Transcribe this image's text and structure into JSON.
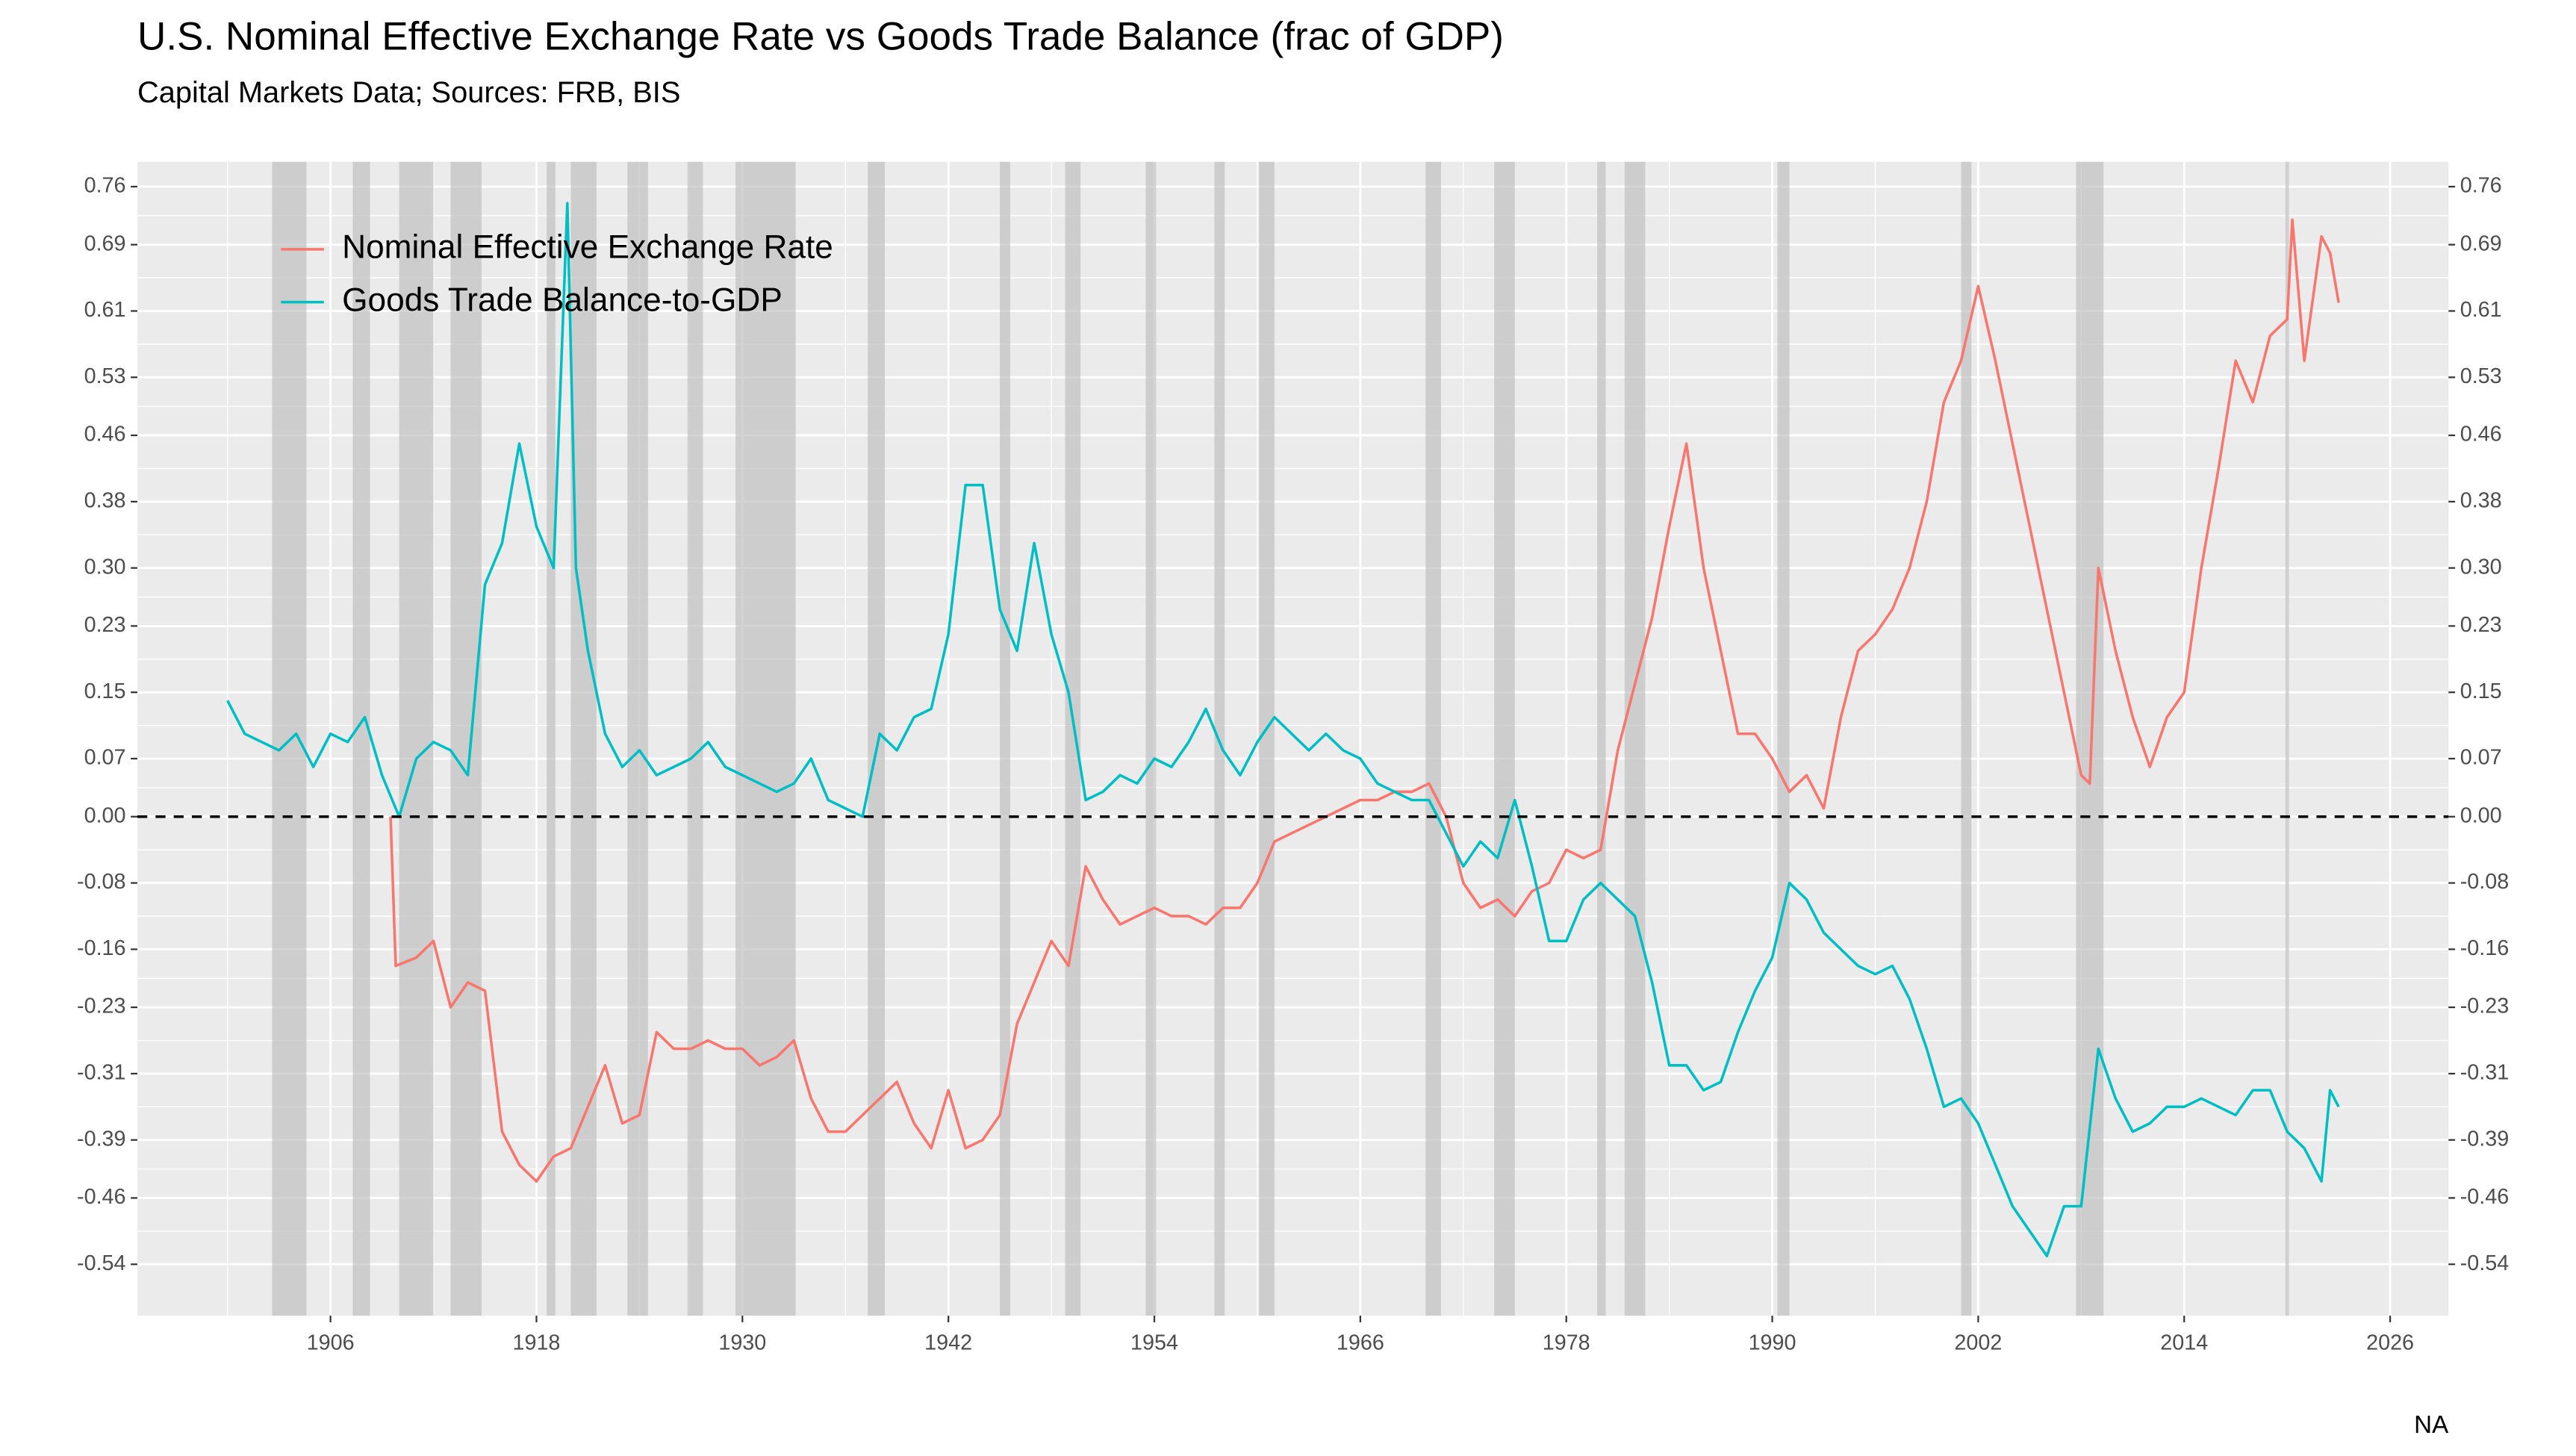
{
  "chart_data": {
    "type": "line",
    "title": "U.S. Nominal Effective Exchange Rate vs Goods Trade Balance (frac of GDP)",
    "subtitle": "Capital Markets Data; Sources: FRB, BIS",
    "caption": "NA",
    "xlim": [
      1894.75,
      2029.4
    ],
    "xticks": [
      1906,
      1918,
      1930,
      1942,
      1954,
      1966,
      1978,
      1990,
      2002,
      2014,
      2026
    ],
    "ylim": [
      -0.602,
      0.79
    ],
    "yticks": [
      {
        "value": 0.76,
        "label": "0.76"
      },
      {
        "value": 0.69,
        "label": "0.69"
      },
      {
        "value": 0.61,
        "label": "0.61"
      },
      {
        "value": 0.53,
        "label": "0.53"
      },
      {
        "value": 0.46,
        "label": "0.46"
      },
      {
        "value": 0.38,
        "label": "0.38"
      },
      {
        "value": 0.3,
        "label": "0.30"
      },
      {
        "value": 0.23,
        "label": "0.23"
      },
      {
        "value": 0.15,
        "label": "0.15"
      },
      {
        "value": 0.07,
        "label": "0.07"
      },
      {
        "value": 0,
        "label": "0.00"
      },
      {
        "value": -0.08,
        "label": "-0.08"
      },
      {
        "value": -0.16,
        "label": "-0.16"
      },
      {
        "value": -0.23,
        "label": "-0.23"
      },
      {
        "value": -0.31,
        "label": "-0.31"
      },
      {
        "value": -0.39,
        "label": "-0.39"
      },
      {
        "value": -0.46,
        "label": "-0.46"
      },
      {
        "value": -0.54,
        "label": "-0.54"
      }
    ],
    "y2lim": [
      -0.602,
      0.79
    ],
    "y2ticks": [
      {
        "value": 0.76,
        "label": "0.76"
      },
      {
        "value": 0.69,
        "label": "0.69"
      },
      {
        "value": 0.61,
        "label": "0.61"
      },
      {
        "value": 0.53,
        "label": "0.53"
      },
      {
        "value": 0.46,
        "label": "0.46"
      },
      {
        "value": 0.38,
        "label": "0.38"
      },
      {
        "value": 0.3,
        "label": "0.30"
      },
      {
        "value": 0.23,
        "label": "0.23"
      },
      {
        "value": 0.15,
        "label": "0.15"
      },
      {
        "value": 0.07,
        "label": "0.07"
      },
      {
        "value": 0,
        "label": "0.00"
      },
      {
        "value": -0.08,
        "label": "-0.08"
      },
      {
        "value": -0.16,
        "label": "-0.16"
      },
      {
        "value": -0.23,
        "label": "-0.23"
      },
      {
        "value": -0.31,
        "label": "-0.31"
      },
      {
        "value": -0.39,
        "label": "-0.39"
      },
      {
        "value": -0.46,
        "label": "-0.46"
      },
      {
        "value": -0.54,
        "label": "-0.54"
      }
    ],
    "grid": true,
    "legend": "top-left",
    "hline": 0,
    "recessions": [
      [
        1902.6,
        1904.6
      ],
      [
        1907.3,
        1908.3
      ],
      [
        1910,
        1912
      ],
      [
        1913,
        1914.8
      ],
      [
        1918.6,
        1919.1
      ],
      [
        1920,
        1921.5
      ],
      [
        1923.3,
        1924.5
      ],
      [
        1926.8,
        1927.7
      ],
      [
        1929.6,
        1933.1
      ],
      [
        1937.3,
        1938.3
      ],
      [
        1945,
        1945.6
      ],
      [
        1948.8,
        1949.7
      ],
      [
        1953.5,
        1954.1
      ],
      [
        1957.5,
        1958.1
      ],
      [
        1960.1,
        1961
      ],
      [
        1969.8,
        1970.7
      ],
      [
        1973.8,
        1975
      ],
      [
        1979.8,
        1980.3
      ],
      [
        1981.4,
        1982.6
      ],
      [
        1990.3,
        1991
      ],
      [
        2001,
        2001.6
      ],
      [
        2007.7,
        2009.3
      ],
      [
        2019.9,
        2020.1
      ]
    ],
    "series": [
      {
        "name": "Nominal Effective Exchange Rate",
        "color": "#F8766D",
        "x": [
          1909.5,
          1909.8,
          1911,
          1912,
          1913,
          1914,
          1915,
          1916,
          1917,
          1918,
          1919,
          1920,
          1921,
          1922,
          1923,
          1924,
          1925,
          1926,
          1927,
          1928,
          1929,
          1930,
          1931,
          1932,
          1933,
          1934,
          1935,
          1936,
          1937,
          1938,
          1939,
          1940,
          1941,
          1942,
          1943,
          1944,
          1945,
          1946,
          1947,
          1948,
          1949,
          1950,
          1951,
          1952,
          1953,
          1954,
          1955,
          1956,
          1957,
          1958,
          1959,
          1960,
          1961,
          1962,
          1963,
          1964,
          1965,
          1966,
          1967,
          1968,
          1969,
          1970,
          1971,
          1972,
          1973,
          1974,
          1975,
          1976,
          1977,
          1978,
          1979,
          1980,
          1981,
          1982,
          1983,
          1984,
          1985,
          1986,
          1987,
          1988,
          1989,
          1990,
          1991,
          1992,
          1993,
          1994,
          1995,
          1996,
          1997,
          1998,
          1999,
          2000,
          2001,
          2002,
          2003,
          2004,
          2005,
          2006,
          2007,
          2008,
          2008.5,
          2009,
          2010,
          2011,
          2012,
          2013,
          2014,
          2015,
          2016,
          2017,
          2018,
          2019,
          2020,
          2020.3,
          2021,
          2022,
          2022.5,
          2023
        ],
        "values": [
          0,
          -0.18,
          -0.17,
          -0.15,
          -0.23,
          -0.2,
          -0.21,
          -0.38,
          -0.42,
          -0.44,
          -0.41,
          -0.4,
          -0.35,
          -0.3,
          -0.37,
          -0.36,
          -0.26,
          -0.28,
          -0.28,
          -0.27,
          -0.28,
          -0.28,
          -0.3,
          -0.29,
          -0.27,
          -0.34,
          -0.38,
          -0.38,
          -0.36,
          -0.34,
          -0.32,
          -0.37,
          -0.4,
          -0.33,
          -0.4,
          -0.39,
          -0.36,
          -0.25,
          -0.2,
          -0.15,
          -0.18,
          -0.06,
          -0.1,
          -0.13,
          -0.12,
          -0.11,
          -0.12,
          -0.12,
          -0.13,
          -0.11,
          -0.11,
          -0.08,
          -0.03,
          -0.02,
          -0.01,
          0,
          0.01,
          0.02,
          0.02,
          0.03,
          0.03,
          0.04,
          0,
          -0.08,
          -0.11,
          -0.1,
          -0.12,
          -0.09,
          -0.08,
          -0.04,
          -0.05,
          -0.04,
          0.08,
          0.16,
          0.24,
          0.35,
          0.45,
          0.3,
          0.2,
          0.1,
          0.1,
          0.07,
          0.03,
          0.05,
          0.01,
          0.12,
          0.2,
          0.22,
          0.25,
          0.3,
          0.38,
          0.5,
          0.55,
          0.64,
          0.55,
          0.45,
          0.35,
          0.25,
          0.15,
          0.05,
          0.04,
          0.3,
          0.2,
          0.12,
          0.06,
          0.12,
          0.15,
          0.3,
          0.42,
          0.55,
          0.5,
          0.58,
          0.6,
          0.72,
          0.55,
          0.7,
          0.68,
          0.62
        ]
      },
      {
        "name": "Goods Trade Balance-to-GDP",
        "color": "#00BFC4",
        "x": [
          1900,
          1901,
          1902,
          1903,
          1904,
          1905,
          1906,
          1907,
          1908,
          1909,
          1910,
          1911,
          1912,
          1913,
          1914,
          1915,
          1916,
          1917,
          1918,
          1919,
          1919.8,
          1920.3,
          1921,
          1922,
          1923,
          1924,
          1925,
          1926,
          1927,
          1928,
          1929,
          1930,
          1931,
          1932,
          1933,
          1934,
          1935,
          1936,
          1937,
          1938,
          1939,
          1940,
          1941,
          1942,
          1943,
          1944,
          1945,
          1946,
          1947,
          1948,
          1949,
          1950,
          1951,
          1952,
          1953,
          1954,
          1955,
          1956,
          1957,
          1958,
          1959,
          1960,
          1961,
          1962,
          1963,
          1964,
          1965,
          1966,
          1967,
          1968,
          1969,
          1970,
          1971,
          1972,
          1973,
          1974,
          1975,
          1976,
          1977,
          1978,
          1979,
          1980,
          1981,
          1982,
          1983,
          1984,
          1985,
          1986,
          1987,
          1988,
          1989,
          1990,
          1991,
          1992,
          1993,
          1994,
          1995,
          1996,
          1997,
          1998,
          1999,
          2000,
          2001,
          2002,
          2003,
          2004,
          2005,
          2006,
          2007,
          2008,
          2009,
          2010,
          2011,
          2012,
          2013,
          2014,
          2015,
          2016,
          2017,
          2018,
          2019,
          2020,
          2021,
          2022,
          2022.5,
          2023
        ],
        "values": [
          0.14,
          0.1,
          0.09,
          0.08,
          0.1,
          0.06,
          0.1,
          0.09,
          0.12,
          0.05,
          0,
          0.07,
          0.09,
          0.08,
          0.05,
          0.28,
          0.33,
          0.45,
          0.35,
          0.3,
          0.74,
          0.3,
          0.2,
          0.1,
          0.06,
          0.08,
          0.05,
          0.06,
          0.07,
          0.09,
          0.06,
          0.05,
          0.04,
          0.03,
          0.04,
          0.07,
          0.02,
          0.01,
          0,
          0.1,
          0.08,
          0.12,
          0.13,
          0.22,
          0.4,
          0.4,
          0.25,
          0.2,
          0.33,
          0.22,
          0.15,
          0.02,
          0.03,
          0.05,
          0.04,
          0.07,
          0.06,
          0.09,
          0.13,
          0.08,
          0.05,
          0.09,
          0.12,
          0.1,
          0.08,
          0.1,
          0.08,
          0.07,
          0.04,
          0.03,
          0.02,
          0.02,
          -0.02,
          -0.06,
          -0.03,
          -0.05,
          0.02,
          -0.06,
          -0.15,
          -0.15,
          -0.1,
          -0.08,
          -0.1,
          -0.12,
          -0.2,
          -0.3,
          -0.3,
          -0.33,
          -0.32,
          -0.26,
          -0.21,
          -0.17,
          -0.08,
          -0.1,
          -0.14,
          -0.16,
          -0.18,
          -0.19,
          -0.18,
          -0.22,
          -0.28,
          -0.35,
          -0.34,
          -0.37,
          -0.42,
          -0.47,
          -0.5,
          -0.53,
          -0.47,
          -0.47,
          -0.28,
          -0.34,
          -0.38,
          -0.37,
          -0.35,
          -0.35,
          -0.34,
          -0.35,
          -0.36,
          -0.33,
          -0.33,
          -0.38,
          -0.4,
          -0.44,
          -0.33,
          -0.35
        ]
      }
    ]
  }
}
